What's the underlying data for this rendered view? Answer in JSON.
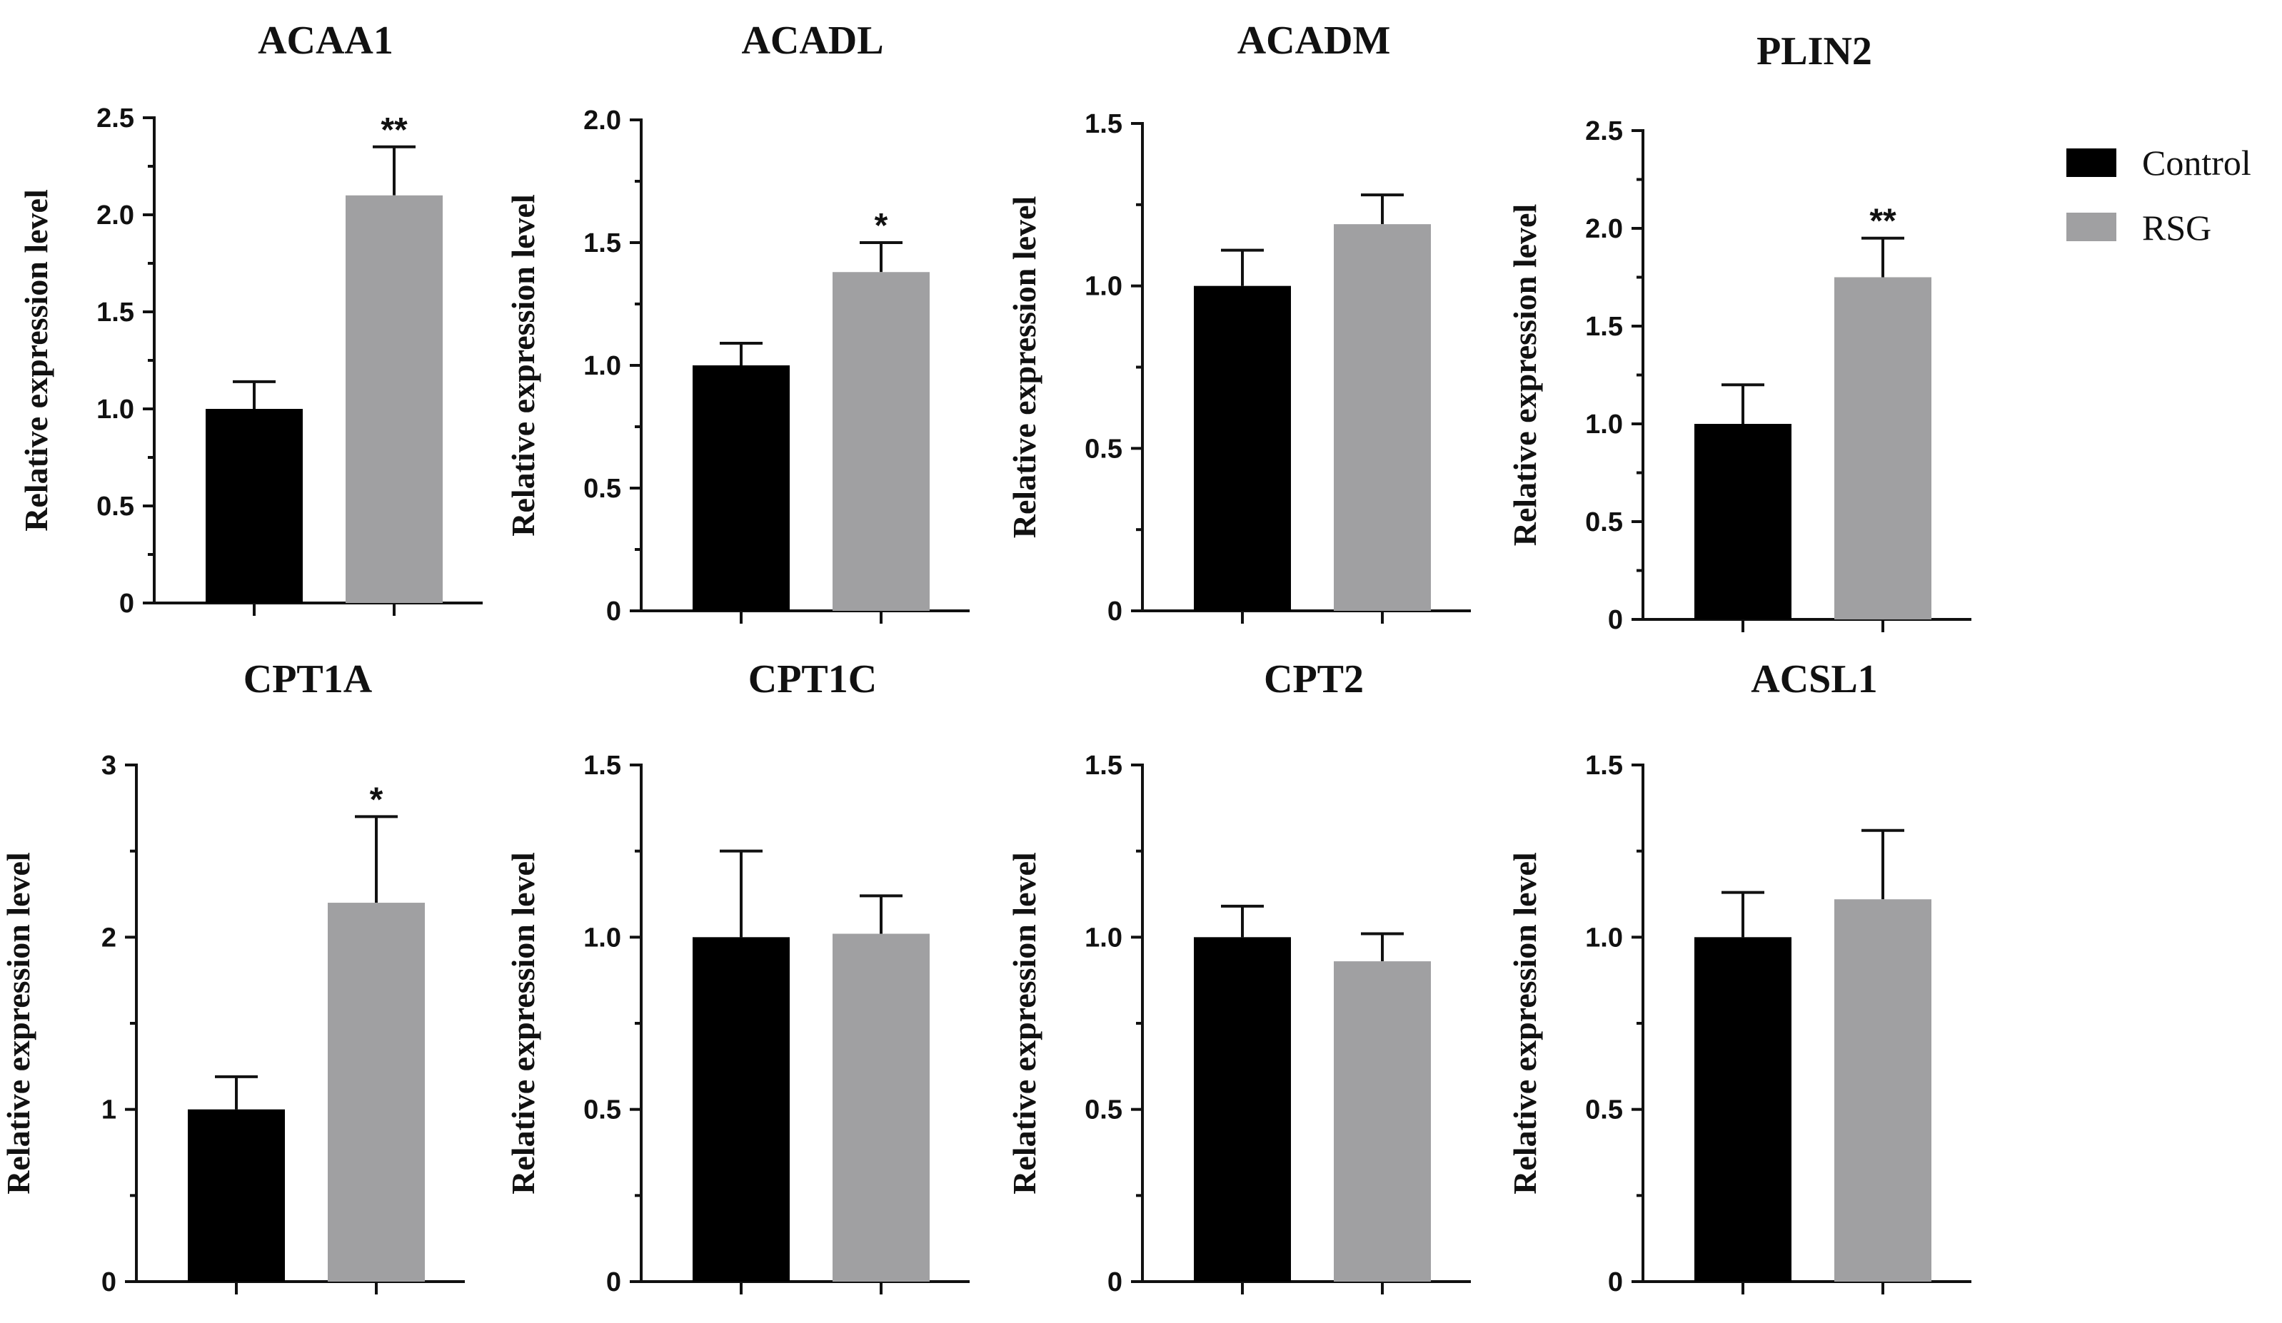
{
  "chart_data": [
    {
      "type": "bar",
      "title": "ACAA1",
      "ylabel": "Relative expression level",
      "ylim": [
        0,
        2.5
      ],
      "ticks": [
        0,
        0.5,
        1.0,
        1.5,
        2.0,
        2.5
      ],
      "tick_labels": [
        "0",
        "0.5",
        "1.0",
        "1.5",
        "2.0",
        "2.5"
      ],
      "series": [
        {
          "name": "Control",
          "value": 1.0,
          "error": 0.14
        },
        {
          "name": "RSG",
          "value": 2.1,
          "error": 0.25
        }
      ],
      "significance": "**"
    },
    {
      "type": "bar",
      "title": "ACADL",
      "ylabel": "Relative expression level",
      "ylim": [
        0,
        2.0
      ],
      "ticks": [
        0,
        0.5,
        1.0,
        1.5,
        2.0
      ],
      "tick_labels": [
        "0",
        "0.5",
        "1.0",
        "1.5",
        "2.0"
      ],
      "series": [
        {
          "name": "Control",
          "value": 1.0,
          "error": 0.09
        },
        {
          "name": "RSG",
          "value": 1.38,
          "error": 0.12
        }
      ],
      "significance": "*"
    },
    {
      "type": "bar",
      "title": "ACADM",
      "ylabel": "Relative expression level",
      "ylim": [
        0,
        1.5
      ],
      "ticks": [
        0,
        0.5,
        1.0,
        1.5
      ],
      "tick_labels": [
        "0",
        "0.5",
        "1.0",
        "1.5"
      ],
      "series": [
        {
          "name": "Control",
          "value": 1.0,
          "error": 0.11
        },
        {
          "name": "RSG",
          "value": 1.19,
          "error": 0.09
        }
      ],
      "significance": ""
    },
    {
      "type": "bar",
      "title": "PLIN2",
      "ylabel": "Relative expression level",
      "ylim": [
        0,
        2.5
      ],
      "ticks": [
        0,
        0.5,
        1.0,
        1.5,
        2.0,
        2.5
      ],
      "tick_labels": [
        "0",
        "0.5",
        "1.0",
        "1.5",
        "2.0",
        "2.5"
      ],
      "series": [
        {
          "name": "Control",
          "value": 1.0,
          "error": 0.2
        },
        {
          "name": "RSG",
          "value": 1.75,
          "error": 0.2
        }
      ],
      "significance": "**"
    },
    {
      "type": "bar",
      "title": "CPT1A",
      "ylabel": "Relative expression level",
      "ylim": [
        0,
        3
      ],
      "ticks": [
        0,
        1,
        2,
        3
      ],
      "tick_labels": [
        "0",
        "1",
        "2",
        "3"
      ],
      "series": [
        {
          "name": "Control",
          "value": 1.0,
          "error": 0.19
        },
        {
          "name": "RSG",
          "value": 2.2,
          "error": 0.5
        }
      ],
      "significance": "*"
    },
    {
      "type": "bar",
      "title": "CPT1C",
      "ylabel": "Relative expression level",
      "ylim": [
        0,
        1.5
      ],
      "ticks": [
        0,
        0.5,
        1.0,
        1.5
      ],
      "tick_labels": [
        "0",
        "0.5",
        "1.0",
        "1.5"
      ],
      "series": [
        {
          "name": "Control",
          "value": 1.0,
          "error": 0.25
        },
        {
          "name": "RSG",
          "value": 1.01,
          "error": 0.11
        }
      ],
      "significance": ""
    },
    {
      "type": "bar",
      "title": "CPT2",
      "ylabel": "Relative expression level",
      "ylim": [
        0,
        1.5
      ],
      "ticks": [
        0,
        0.5,
        1.0,
        1.5
      ],
      "tick_labels": [
        "0",
        "0.5",
        "1.0",
        "1.5"
      ],
      "series": [
        {
          "name": "Control",
          "value": 1.0,
          "error": 0.09
        },
        {
          "name": "RSG",
          "value": 0.93,
          "error": 0.08
        }
      ],
      "significance": ""
    },
    {
      "type": "bar",
      "title": "ACSL1",
      "ylabel": "Relative expression level",
      "ylim": [
        0,
        1.5
      ],
      "ticks": [
        0,
        0.5,
        1.0,
        1.5
      ],
      "tick_labels": [
        "0",
        "0.5",
        "1.0",
        "1.5"
      ],
      "series": [
        {
          "name": "Control",
          "value": 1.0,
          "error": 0.13
        },
        {
          "name": "RSG",
          "value": 1.11,
          "error": 0.2
        }
      ],
      "significance": ""
    }
  ],
  "legend": {
    "items": [
      {
        "label": "Control",
        "color": "#000000"
      },
      {
        "label": "RSG",
        "color": "#a0a0a2"
      }
    ]
  }
}
